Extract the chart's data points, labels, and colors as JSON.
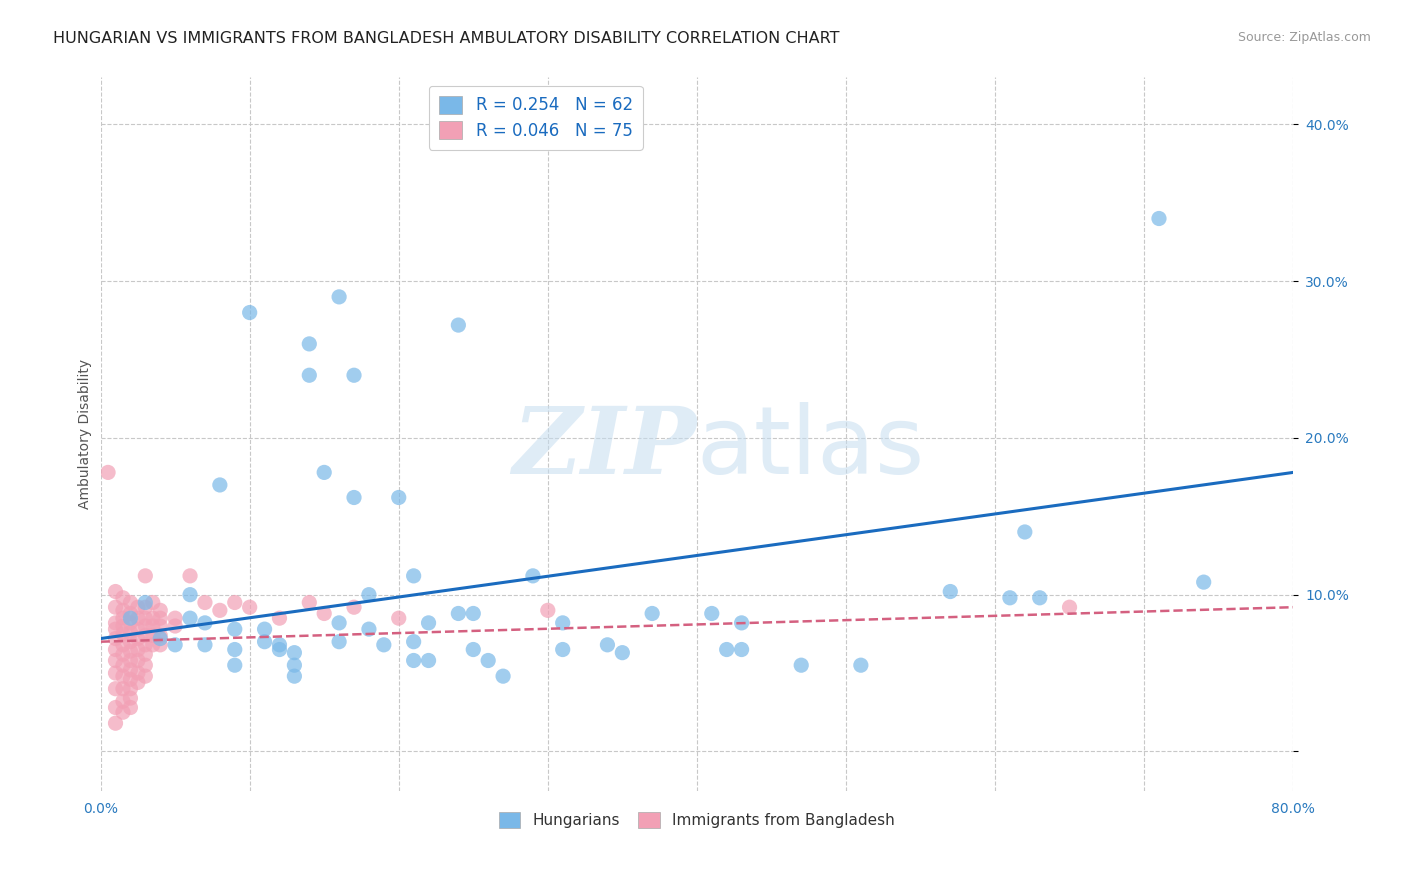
{
  "title": "HUNGARIAN VS IMMIGRANTS FROM BANGLADESH AMBULATORY DISABILITY CORRELATION CHART",
  "source": "Source: ZipAtlas.com",
  "ylabel": "Ambulatory Disability",
  "xlim": [
    0.0,
    0.8
  ],
  "ylim": [
    -0.025,
    0.43
  ],
  "xticks": [
    0.0,
    0.1,
    0.2,
    0.3,
    0.4,
    0.5,
    0.6,
    0.7,
    0.8
  ],
  "xticklabels": [
    "0.0%",
    "",
    "",
    "",
    "",
    "",
    "",
    "",
    "80.0%"
  ],
  "yticks": [
    0.0,
    0.1,
    0.2,
    0.3,
    0.4
  ],
  "yticklabels": [
    "",
    "10.0%",
    "20.0%",
    "30.0%",
    "40.0%"
  ],
  "hungarian_scatter": [
    [
      0.02,
      0.085
    ],
    [
      0.03,
      0.095
    ],
    [
      0.04,
      0.072
    ],
    [
      0.05,
      0.068
    ],
    [
      0.06,
      0.1
    ],
    [
      0.06,
      0.085
    ],
    [
      0.07,
      0.082
    ],
    [
      0.07,
      0.068
    ],
    [
      0.08,
      0.17
    ],
    [
      0.09,
      0.078
    ],
    [
      0.09,
      0.065
    ],
    [
      0.09,
      0.055
    ],
    [
      0.1,
      0.28
    ],
    [
      0.11,
      0.078
    ],
    [
      0.11,
      0.07
    ],
    [
      0.12,
      0.065
    ],
    [
      0.12,
      0.068
    ],
    [
      0.13,
      0.063
    ],
    [
      0.13,
      0.055
    ],
    [
      0.13,
      0.048
    ],
    [
      0.14,
      0.26
    ],
    [
      0.14,
      0.24
    ],
    [
      0.15,
      0.178
    ],
    [
      0.16,
      0.29
    ],
    [
      0.16,
      0.082
    ],
    [
      0.16,
      0.07
    ],
    [
      0.17,
      0.24
    ],
    [
      0.17,
      0.162
    ],
    [
      0.18,
      0.1
    ],
    [
      0.18,
      0.078
    ],
    [
      0.19,
      0.068
    ],
    [
      0.2,
      0.162
    ],
    [
      0.21,
      0.112
    ],
    [
      0.21,
      0.07
    ],
    [
      0.21,
      0.058
    ],
    [
      0.22,
      0.082
    ],
    [
      0.22,
      0.058
    ],
    [
      0.24,
      0.272
    ],
    [
      0.24,
      0.088
    ],
    [
      0.25,
      0.088
    ],
    [
      0.25,
      0.065
    ],
    [
      0.26,
      0.058
    ],
    [
      0.27,
      0.048
    ],
    [
      0.29,
      0.112
    ],
    [
      0.31,
      0.082
    ],
    [
      0.31,
      0.065
    ],
    [
      0.34,
      0.068
    ],
    [
      0.35,
      0.063
    ],
    [
      0.37,
      0.088
    ],
    [
      0.41,
      0.088
    ],
    [
      0.42,
      0.065
    ],
    [
      0.43,
      0.082
    ],
    [
      0.43,
      0.065
    ],
    [
      0.47,
      0.055
    ],
    [
      0.51,
      0.055
    ],
    [
      0.57,
      0.102
    ],
    [
      0.61,
      0.098
    ],
    [
      0.62,
      0.14
    ],
    [
      0.63,
      0.098
    ],
    [
      0.71,
      0.34
    ],
    [
      0.74,
      0.108
    ]
  ],
  "bangladesh_scatter": [
    [
      0.005,
      0.178
    ],
    [
      0.01,
      0.102
    ],
    [
      0.01,
      0.092
    ],
    [
      0.01,
      0.082
    ],
    [
      0.01,
      0.078
    ],
    [
      0.01,
      0.072
    ],
    [
      0.01,
      0.065
    ],
    [
      0.01,
      0.058
    ],
    [
      0.01,
      0.05
    ],
    [
      0.01,
      0.04
    ],
    [
      0.01,
      0.028
    ],
    [
      0.01,
      0.018
    ],
    [
      0.015,
      0.098
    ],
    [
      0.015,
      0.09
    ],
    [
      0.015,
      0.085
    ],
    [
      0.015,
      0.08
    ],
    [
      0.015,
      0.075
    ],
    [
      0.015,
      0.068
    ],
    [
      0.015,
      0.062
    ],
    [
      0.015,
      0.055
    ],
    [
      0.015,
      0.048
    ],
    [
      0.015,
      0.04
    ],
    [
      0.015,
      0.032
    ],
    [
      0.015,
      0.025
    ],
    [
      0.02,
      0.095
    ],
    [
      0.02,
      0.088
    ],
    [
      0.02,
      0.082
    ],
    [
      0.02,
      0.076
    ],
    [
      0.02,
      0.07
    ],
    [
      0.02,
      0.064
    ],
    [
      0.02,
      0.058
    ],
    [
      0.02,
      0.052
    ],
    [
      0.02,
      0.046
    ],
    [
      0.02,
      0.04
    ],
    [
      0.02,
      0.034
    ],
    [
      0.02,
      0.028
    ],
    [
      0.025,
      0.092
    ],
    [
      0.025,
      0.085
    ],
    [
      0.025,
      0.078
    ],
    [
      0.025,
      0.072
    ],
    [
      0.025,
      0.065
    ],
    [
      0.025,
      0.058
    ],
    [
      0.025,
      0.05
    ],
    [
      0.025,
      0.044
    ],
    [
      0.03,
      0.112
    ],
    [
      0.03,
      0.092
    ],
    [
      0.03,
      0.085
    ],
    [
      0.03,
      0.08
    ],
    [
      0.03,
      0.074
    ],
    [
      0.03,
      0.068
    ],
    [
      0.03,
      0.062
    ],
    [
      0.03,
      0.055
    ],
    [
      0.03,
      0.048
    ],
    [
      0.035,
      0.095
    ],
    [
      0.035,
      0.085
    ],
    [
      0.035,
      0.08
    ],
    [
      0.035,
      0.074
    ],
    [
      0.035,
      0.068
    ],
    [
      0.04,
      0.09
    ],
    [
      0.04,
      0.085
    ],
    [
      0.04,
      0.08
    ],
    [
      0.04,
      0.074
    ],
    [
      0.04,
      0.068
    ],
    [
      0.05,
      0.085
    ],
    [
      0.05,
      0.08
    ],
    [
      0.06,
      0.112
    ],
    [
      0.07,
      0.095
    ],
    [
      0.08,
      0.09
    ],
    [
      0.09,
      0.095
    ],
    [
      0.1,
      0.092
    ],
    [
      0.12,
      0.085
    ],
    [
      0.14,
      0.095
    ],
    [
      0.15,
      0.088
    ],
    [
      0.17,
      0.092
    ],
    [
      0.2,
      0.085
    ],
    [
      0.3,
      0.09
    ],
    [
      0.65,
      0.092
    ]
  ],
  "hungarian_line_x": [
    0.0,
    0.8
  ],
  "hungarian_line_y": [
    0.072,
    0.178
  ],
  "bangladesh_line_x": [
    0.0,
    0.8
  ],
  "bangladesh_line_y": [
    0.07,
    0.092
  ],
  "scatter_color_hungarian": "#7ab8e8",
  "scatter_color_bangladesh": "#f2a0b5",
  "line_color_hungarian": "#1a6bbf",
  "line_color_bangladesh": "#d46080",
  "background_color": "#ffffff",
  "grid_color": "#c8c8c8",
  "watermark_zip": "ZIP",
  "watermark_atlas": "atlas",
  "title_fontsize": 11.5,
  "axis_label_fontsize": 10,
  "tick_fontsize": 10,
  "scatter_size": 120
}
